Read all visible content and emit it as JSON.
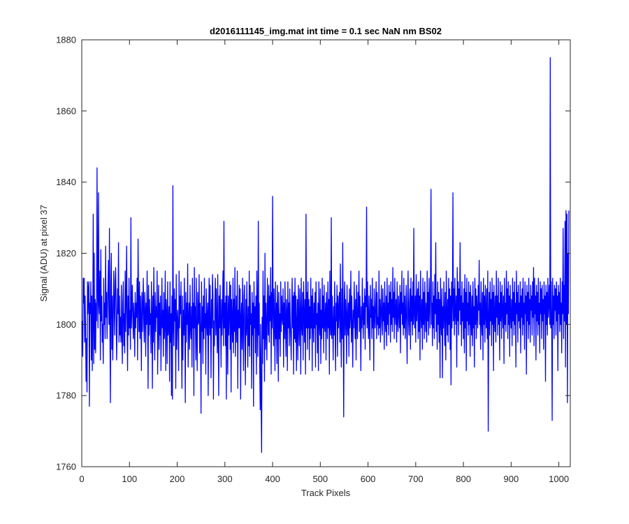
{
  "chart_data": {
    "type": "line",
    "title": "d2016111145_img.mat int time = 0.1 sec  NaN nm BS02",
    "xlabel": "Track Pixels",
    "ylabel": "Signal (ADU) at pixel 37",
    "xlim": [
      0,
      1024
    ],
    "ylim": [
      1760,
      1880
    ],
    "xticks": [
      0,
      100,
      200,
      300,
      400,
      500,
      600,
      700,
      800,
      900,
      1000
    ],
    "yticks": [
      1760,
      1780,
      1800,
      1820,
      1840,
      1860,
      1880
    ],
    "grid": false,
    "series_color": "#0000ff",
    "series": [
      {
        "x_start": 1,
        "x_step": 1,
        "values": [
          1801,
          1791,
          1813,
          1806,
          1813,
          1795,
          1808,
          1799,
          1784,
          1796,
          1781,
          1812,
          1803,
          1810,
          1812,
          1777,
          1806,
          1803,
          1812,
          1790,
          1808,
          1787,
          1801,
          1831,
          1789,
          1820,
          1793,
          1807,
          1792,
          1806,
          1801,
          1844,
          1810,
          1799,
          1837,
          1806,
          1803,
          1815,
          1790,
          1821,
          1801,
          1808,
          1795,
          1800,
          1789,
          1813,
          1800,
          1806,
          1796,
          1822,
          1802,
          1809,
          1796,
          1805,
          1811,
          1818,
          1800,
          1827,
          1799,
          1778,
          1812,
          1820,
          1793,
          1808,
          1790,
          1801,
          1815,
          1806,
          1797,
          1812,
          1816,
          1805,
          1790,
          1800,
          1810,
          1803,
          1823,
          1795,
          1808,
          1797,
          1802,
          1795,
          1811,
          1798,
          1789,
          1806,
          1812,
          1794,
          1803,
          1792,
          1815,
          1798,
          1807,
          1822,
          1800,
          1787,
          1808,
          1797,
          1813,
          1799,
          1804,
          1793,
          1830,
          1799,
          1805,
          1811,
          1802,
          1796,
          1806,
          1801,
          1791,
          1809,
          1799,
          1806,
          1802,
          1813,
          1790,
          1824,
          1807,
          1798,
          1812,
          1796,
          1808,
          1802,
          1787,
          1809,
          1798,
          1805,
          1813,
          1800,
          1795,
          1809,
          1804,
          1791,
          1806,
          1800,
          1815,
          1802,
          1782,
          1811,
          1797,
          1807,
          1800,
          1803,
          1792,
          1812,
          1803,
          1782,
          1808,
          1795,
          1816,
          1801,
          1790,
          1809,
          1798,
          1805,
          1802,
          1815,
          1786,
          1800,
          1811,
          1793,
          1806,
          1797,
          1808,
          1787,
          1800,
          1813,
          1799,
          1804,
          1791,
          1809,
          1796,
          1800,
          1815,
          1787,
          1807,
          1803,
          1789,
          1812,
          1797,
          1800,
          1805,
          1784,
          1812,
          1795,
          1803,
          1780,
          1808,
          1779,
          1839,
          1800,
          1794,
          1810,
          1801,
          1807,
          1782,
          1814,
          1793,
          1800,
          1804,
          1798,
          1787,
          1815,
          1799,
          1808,
          1803,
          1812,
          1796,
          1782,
          1808,
          1790,
          1804,
          1797,
          1813,
          1800,
          1778,
          1809,
          1795,
          1806,
          1800,
          1817,
          1788,
          1801,
          1806,
          1793,
          1811,
          1799,
          1796,
          1805,
          1788,
          1813,
          1799,
          1806,
          1780,
          1816,
          1799,
          1805,
          1790,
          1813,
          1796,
          1787,
          1809,
          1800,
          1801,
          1814,
          1792,
          1806,
          1797,
          1775,
          1812,
          1798,
          1805,
          1789,
          1808,
          1796,
          1813,
          1799,
          1803,
          1786,
          1810,
          1802,
          1797,
          1806,
          1780,
          1803,
          1813,
          1797,
          1811,
          1800,
          1785,
          1807,
          1799,
          1814,
          1808,
          1779,
          1801,
          1794,
          1806,
          1813,
          1797,
          1810,
          1800,
          1792,
          1814,
          1798,
          1780,
          1808,
          1799,
          1811,
          1801,
          1788,
          1807,
          1797,
          1804,
          1815,
          1794,
          1829,
          1799,
          1806,
          1794,
          1808,
          1779,
          1812,
          1801,
          1786,
          1808,
          1797,
          1804,
          1812,
          1793,
          1811,
          1781,
          1807,
          1801,
          1795,
          1813,
          1792,
          1807,
          1798,
          1816,
          1791,
          1801,
          1808,
          1795,
          1815,
          1782,
          1804,
          1799,
          1811,
          1799,
          1810,
          1779,
          1802,
          1806,
          1793,
          1813,
          1799,
          1787,
          1808,
          1811,
          1795,
          1783,
          1807,
          1797,
          1812,
          1800,
          1788,
          1805,
          1794,
          1815,
          1791,
          1811,
          1800,
          1803,
          1782,
          1809,
          1797,
          1806,
          1777,
          1812,
          1799,
          1805,
          1792,
          1808,
          1786,
          1815,
          1803,
          1791,
          1829,
          1797,
          1806,
          1788,
          1776,
          1800,
          1778,
          1764,
          1802,
          1789,
          1815,
          1796,
          1808,
          1784,
          1820,
          1793,
          1806,
          1799,
          1790,
          1813,
          1803,
          1797,
          1811,
          1795,
          1808,
          1801,
          1816,
          1786,
          1809,
          1799,
          1836,
          1803,
          1794,
          1810,
          1801,
          1787,
          1812,
          1796,
          1806,
          1789,
          1811,
          1803,
          1784,
          1809,
          1796,
          1803,
          1791,
          1812,
          1798,
          1808,
          1802,
          1800,
          1810,
          1788,
          1806,
          1796,
          1812,
          1800,
          1791,
          1807,
          1803,
          1787,
          1812,
          1799,
          1806,
          1794,
          1810,
          1801,
          1796,
          1790,
          1804,
          1813,
          1799,
          1808,
          1786,
          1809,
          1796,
          1813,
          1795,
          1808,
          1787,
          1800,
          1807,
          1790,
          1811,
          1800,
          1794,
          1810,
          1803,
          1786,
          1813,
          1800,
          1797,
          1809,
          1790,
          1812,
          1803,
          1795,
          1807,
          1786,
          1831,
          1799,
          1809,
          1793,
          1812,
          1799,
          1807,
          1790,
          1805,
          1796,
          1813,
          1799,
          1808,
          1787,
          1810,
          1801,
          1795,
          1806,
          1799,
          1809,
          1788,
          1812,
          1800,
          1803,
          1792,
          1806,
          1787,
          1812,
          1801,
          1797,
          1810,
          1789,
          1804,
          1796,
          1813,
          1799,
          1808,
          1792,
          1811,
          1800,
          1798,
          1806,
          1790,
          1809,
          1803,
          1796,
          1812,
          1799,
          1807,
          1786,
          1815,
          1800,
          1797,
          1830,
          1796,
          1808,
          1800,
          1790,
          1805,
          1797,
          1812,
          1799,
          1787,
          1806,
          1801,
          1811,
          1791,
          1808,
          1799,
          1804,
          1809,
          1795,
          1817,
          1800,
          1788,
          1810,
          1796,
          1823,
          1800,
          1774,
          1806,
          1812,
          1797,
          1807,
          1802,
          1789,
          1811,
          1800,
          1797,
          1806,
          1791,
          1810,
          1799,
          1803,
          1815,
          1795,
          1808,
          1800,
          1788,
          1804,
          1799,
          1812,
          1803,
          1796,
          1807,
          1790,
          1811,
          1801,
          1796,
          1809,
          1802,
          1815,
          1798,
          1808,
          1801,
          1787,
          1805,
          1799,
          1813,
          1803,
          1796,
          1806,
          1800,
          1810,
          1793,
          1808,
          1805,
          1833,
          1799,
          1812,
          1801,
          1796,
          1808,
          1800,
          1790,
          1811,
          1802,
          1807,
          1796,
          1813,
          1799,
          1805,
          1787,
          1810,
          1803,
          1799,
          1806,
          1812,
          1796,
          1809,
          1800,
          1802,
          1797,
          1815,
          1799,
          1807,
          1795,
          1804,
          1811,
          1800,
          1797,
          1810,
          1801,
          1806,
          1793,
          1812,
          1802,
          1798,
          1808,
          1794,
          1813,
          1800,
          1806,
          1797,
          1811,
          1803,
          1809,
          1795,
          1812,
          1800,
          1807,
          1798,
          1816,
          1802,
          1809,
          1796,
          1813,
          1803,
          1800,
          1807,
          1795,
          1812,
          1801,
          1798,
          1808,
          1804,
          1799,
          1811,
          1792,
          1809,
          1803,
          1815,
          1800,
          1806,
          1797,
          1813,
          1799,
          1808,
          1796,
          1803,
          1811,
          1800,
          1789,
          1807,
          1815,
          1801,
          1797,
          1806,
          1810,
          1793,
          1813,
          1801,
          1808,
          1797,
          1812,
          1800,
          1827,
          1803,
          1799,
          1808,
          1795,
          1814,
          1801,
          1806,
          1810,
          1796,
          1812,
          1798,
          1808,
          1790,
          1815,
          1803,
          1799,
          1807,
          1793,
          1813,
          1800,
          1809,
          1796,
          1812,
          1803,
          1798,
          1806,
          1795,
          1815,
          1801,
          1809,
          1797,
          1813,
          1806,
          1799,
          1811,
          1838,
          1800,
          1806,
          1794,
          1812,
          1799,
          1808,
          1796,
          1814,
          1803,
          1823,
          1798,
          1807,
          1793,
          1812,
          1800,
          1809,
          1795,
          1807,
          1785,
          1813,
          1801,
          1797,
          1810,
          1785,
          1805,
          1799,
          1812,
          1802,
          1794,
          1809,
          1790,
          1815,
          1803,
          1797,
          1807,
          1795,
          1813,
          1800,
          1810,
          1793,
          1808,
          1783,
          1812,
          1799,
          1806,
          1837,
          1801,
          1810,
          1797,
          1813,
          1803,
          1800,
          1808,
          1788,
          1816,
          1801,
          1812,
          1797,
          1810,
          1804,
          1823,
          1800,
          1808,
          1794,
          1812,
          1801,
          1806,
          1796,
          1810,
          1792,
          1814,
          1799,
          1809,
          1787,
          1813,
          1801,
          1806,
          1797,
          1812,
          1800,
          1809,
          1791,
          1811,
          1802,
          1797,
          1808,
          1794,
          1812,
          1799,
          1805,
          1788,
          1813,
          1800,
          1810,
          1796,
          1808,
          1803,
          1799,
          1811,
          1804,
          1818,
          1800,
          1806,
          1793,
          1812,
          1801,
          1797,
          1809,
          1790,
          1813,
          1800,
          1808,
          1795,
          1811,
          1803,
          1799,
          1810,
          1796,
          1815,
          1770,
          1802,
          1809,
          1797,
          1812,
          1801,
          1807,
          1794,
          1813,
          1800,
          1809,
          1787,
          1811,
          1803,
          1798,
          1808,
          1795,
          1815,
          1802,
          1808,
          1797,
          1813,
          1800,
          1806,
          1790,
          1812,
          1801,
          1809,
          1796,
          1811,
          1804,
          1799,
          1808,
          1789,
          1813,
          1800,
          1806,
          1798,
          1815,
          1803,
          1810,
          1796,
          1812,
          1800,
          1808,
          1791,
          1811,
          1803,
          1799,
          1807,
          1794,
          1813,
          1801,
          1809,
          1797,
          1812,
          1800,
          1806,
          1788,
          1815,
          1803,
          1809,
          1795,
          1811,
          1801,
          1806,
          1799,
          1812,
          1792,
          1808,
          1802,
          1810,
          1797,
          1813,
          1800,
          1806,
          1793,
          1812,
          1803,
          1808,
          1786,
          1811,
          1801,
          1809,
          1796,
          1813,
          1800,
          1807,
          1795,
          1811,
          1804,
          1808,
          1797,
          1812,
          1802,
          1816,
          1794,
          1813,
          1803,
          1808,
          1790,
          1811,
          1801,
          1809,
          1797,
          1813,
          1800,
          1806,
          1792,
          1812,
          1803,
          1810,
          1796,
          1811,
          1801,
          1807,
          1793,
          1812,
          1803,
          1808,
          1784,
          1811,
          1800,
          1809,
          1797,
          1813,
          1802,
          1806,
          1811,
          1800,
          1875,
          1799,
          1812,
          1801,
          1773,
          1813,
          1800,
          1808,
          1796,
          1811,
          1804,
          1810,
          1797,
          1812,
          1801,
          1808,
          1787,
          1811,
          1803,
          1809,
          1798,
          1813,
          1800,
          1806,
          1792,
          1812,
          1803,
          1827,
          1796,
          1811,
          1801,
          1829,
          1788,
          1832,
          1800,
          1831,
          1778,
          1820,
          1803,
          1832
        ]
      }
    ]
  }
}
